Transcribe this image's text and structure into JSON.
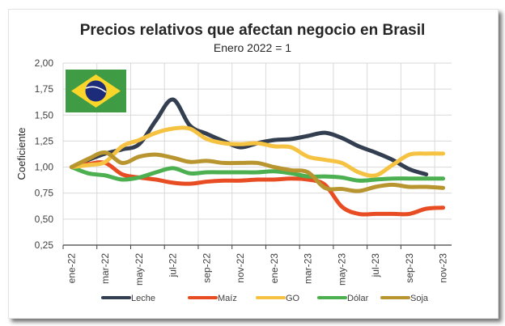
{
  "chart_data": {
    "type": "line",
    "title": "Precios relativos que afectan negocio en Brasil",
    "subtitle": "Enero 2022 = 1",
    "xlabel": "",
    "ylabel": "Coeficiente",
    "ylim": [
      0.25,
      2.0
    ],
    "yticks": [
      "0,25",
      "0,50",
      "0,75",
      "1,00",
      "1,25",
      "1,50",
      "1,75",
      "2,00"
    ],
    "ytick_values": [
      0.25,
      0.5,
      0.75,
      1.0,
      1.25,
      1.5,
      1.75,
      2.0
    ],
    "categories": [
      "ene-22",
      "feb-22",
      "mar-22",
      "abr-22",
      "may-22",
      "jun-22",
      "jul-22",
      "ago-22",
      "sep-22",
      "oct-22",
      "nov-22",
      "dic-22",
      "ene-23",
      "feb-23",
      "mar-23",
      "abr-23",
      "may-23",
      "jun-23",
      "jul-23",
      "ago-23",
      "sep-23",
      "oct-23",
      "nov-23"
    ],
    "xtick_labels": [
      "ene-22",
      "mar-22",
      "may-22",
      "jul-22",
      "sep-22",
      "nov-22",
      "ene-23",
      "mar-23",
      "may-23",
      "jul-23",
      "sep-23",
      "nov-23"
    ],
    "grid": true,
    "legend_position": "bottom",
    "series": [
      {
        "name": "Leche",
        "color": "#333F50",
        "values": [
          1.0,
          1.07,
          1.13,
          1.17,
          1.22,
          1.45,
          1.65,
          1.4,
          1.32,
          1.25,
          1.19,
          1.23,
          1.26,
          1.27,
          1.3,
          1.33,
          1.28,
          1.2,
          1.14,
          1.07,
          0.98,
          0.93,
          null
        ]
      },
      {
        "name": "Maíz",
        "color": "#E84C22",
        "values": [
          1.0,
          1.03,
          1.04,
          0.93,
          0.9,
          0.88,
          0.85,
          0.84,
          0.86,
          0.87,
          0.87,
          0.88,
          0.88,
          0.89,
          0.88,
          0.83,
          0.62,
          0.55,
          0.55,
          0.55,
          0.55,
          0.6,
          0.61
        ]
      },
      {
        "name": "GO",
        "color": "#F5C242",
        "values": [
          1.0,
          1.02,
          1.05,
          1.2,
          1.26,
          1.33,
          1.37,
          1.37,
          1.27,
          1.23,
          1.22,
          1.23,
          1.2,
          1.19,
          1.1,
          1.07,
          1.04,
          0.95,
          0.92,
          1.02,
          1.12,
          1.13,
          1.13
        ]
      },
      {
        "name": "Dólar",
        "color": "#4CAF50",
        "values": [
          1.0,
          0.94,
          0.92,
          0.88,
          0.9,
          0.95,
          0.99,
          0.94,
          0.95,
          0.95,
          0.95,
          0.95,
          0.96,
          0.94,
          0.91,
          0.91,
          0.9,
          0.87,
          0.88,
          0.89,
          0.89,
          0.89,
          0.89
        ]
      },
      {
        "name": "Soja",
        "color": "#B8952F",
        "values": [
          1.0,
          1.08,
          1.14,
          1.04,
          1.1,
          1.12,
          1.09,
          1.05,
          1.06,
          1.04,
          1.04,
          1.04,
          1.0,
          0.97,
          0.95,
          0.8,
          0.79,
          0.77,
          0.81,
          0.83,
          0.81,
          0.81,
          0.8
        ]
      }
    ],
    "annotations": [
      {
        "type": "image",
        "description": "Bandera de Brasil",
        "position": "top-left"
      }
    ]
  },
  "flag": {
    "name": "brazil-flag",
    "green": "#3F9C45",
    "yellow": "#FAD62A",
    "blue": "#1D2C7A"
  }
}
